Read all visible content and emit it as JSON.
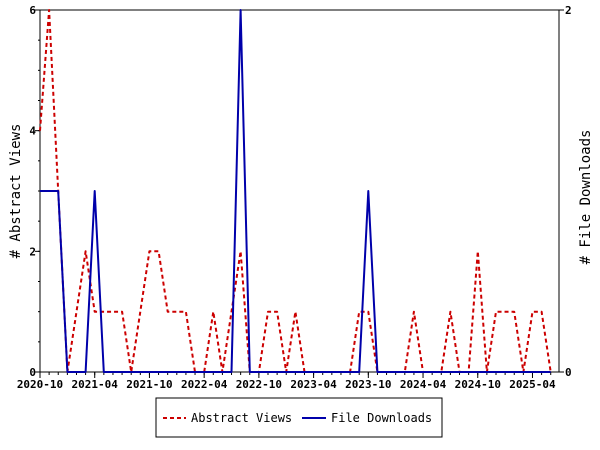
{
  "chart_data": {
    "type": "line",
    "x_ticks": [
      "2020-10",
      "2021-04",
      "2021-10",
      "2022-04",
      "2022-10",
      "2023-04",
      "2023-10",
      "2024-04",
      "2024-10",
      "2025-04"
    ],
    "xlabel": "",
    "ylabel_left": "# Abstract Views",
    "ylabel_right": "# File Downloads",
    "y_left_ticks": [
      "0",
      "2",
      "4",
      "6"
    ],
    "y_right_ticks": [
      "0",
      "2"
    ],
    "ylim_left": [
      0,
      6
    ],
    "ylim_right": [
      0,
      2
    ],
    "grid": false,
    "legend_position": "bottom-center",
    "series": [
      {
        "name": "Abstract Views",
        "axis": "left",
        "color": "#cc0000",
        "style": "dashed",
        "x": [
          "2020-10",
          "2020-11",
          "2020-12",
          "2021-01",
          "2021-02",
          "2021-03",
          "2021-04",
          "2021-05",
          "2021-06",
          "2021-07",
          "2021-08",
          "2021-09",
          "2021-10",
          "2021-11",
          "2021-12",
          "2022-01",
          "2022-02",
          "2022-03",
          "2022-04",
          "2022-05",
          "2022-06",
          "2022-07",
          "2022-08",
          "2022-09",
          "2022-10",
          "2022-11",
          "2022-12",
          "2023-01",
          "2023-02",
          "2023-03",
          "2023-04",
          "2023-05",
          "2023-06",
          "2023-07",
          "2023-08",
          "2023-09",
          "2023-10",
          "2023-11",
          "2023-12",
          "2024-01",
          "2024-02",
          "2024-03",
          "2024-04",
          "2024-05",
          "2024-06",
          "2024-07",
          "2024-08",
          "2024-09",
          "2024-10",
          "2024-11",
          "2024-12",
          "2025-01",
          "2025-02",
          "2025-03",
          "2025-04",
          "2025-05",
          "2025-06"
        ],
        "values": [
          4,
          6,
          3,
          0,
          1,
          2,
          1,
          1,
          1,
          1,
          0,
          1,
          2,
          2,
          1,
          1,
          1,
          0,
          0,
          1,
          0,
          1,
          2,
          0,
          0,
          1,
          1,
          0,
          1,
          0,
          0,
          0,
          0,
          0,
          0,
          1,
          1,
          0,
          0,
          0,
          0,
          1,
          0,
          0,
          0,
          1,
          0,
          0,
          2,
          0,
          1,
          1,
          1,
          0,
          1,
          1,
          0
        ]
      },
      {
        "name": "File Downloads",
        "axis": "right",
        "color": "#0000aa",
        "style": "solid",
        "x": [
          "2020-10",
          "2020-11",
          "2020-12",
          "2021-01",
          "2021-02",
          "2021-03",
          "2021-04",
          "2021-05",
          "2021-06",
          "2021-07",
          "2021-08",
          "2021-09",
          "2021-10",
          "2021-11",
          "2021-12",
          "2022-01",
          "2022-02",
          "2022-03",
          "2022-04",
          "2022-05",
          "2022-06",
          "2022-07",
          "2022-08",
          "2022-09",
          "2022-10",
          "2022-11",
          "2022-12",
          "2023-01",
          "2023-02",
          "2023-03",
          "2023-04",
          "2023-05",
          "2023-06",
          "2023-07",
          "2023-08",
          "2023-09",
          "2023-10",
          "2023-11",
          "2023-12",
          "2024-01",
          "2024-02",
          "2024-03",
          "2024-04",
          "2024-05",
          "2024-06",
          "2024-07",
          "2024-08",
          "2024-09",
          "2024-10",
          "2024-11",
          "2024-12",
          "2025-01",
          "2025-02",
          "2025-03",
          "2025-04",
          "2025-05",
          "2025-06"
        ],
        "values": [
          1,
          1,
          1,
          0,
          0,
          0,
          1,
          0,
          0,
          0,
          0,
          0,
          0,
          0,
          0,
          0,
          0,
          0,
          0,
          0,
          0,
          0,
          2,
          0,
          0,
          0,
          0,
          0,
          0,
          0,
          0,
          0,
          0,
          0,
          0,
          0,
          1,
          0,
          0,
          0,
          0,
          0,
          0,
          0,
          0,
          0,
          0,
          0,
          0,
          0,
          0,
          0,
          0,
          0,
          0,
          0,
          0
        ]
      }
    ]
  }
}
